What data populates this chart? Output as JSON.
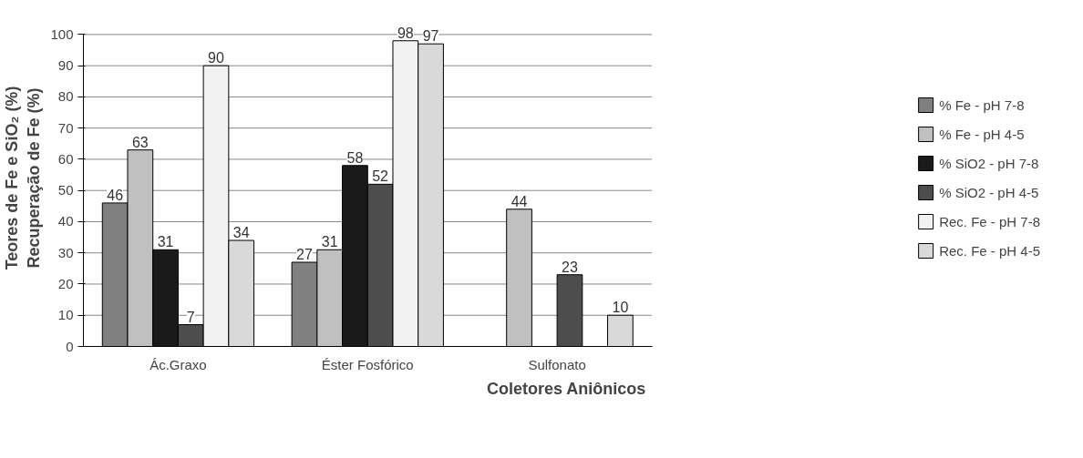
{
  "chart_data": {
    "type": "bar",
    "categories": [
      "Ác.Graxo",
      "Éster Fosfórico",
      "Sulfonato"
    ],
    "xlabel": "Coletores Aniônicos",
    "ylabel": "Teores de Fe e SiO₂ (%)\nRecuperação de Fe (%)",
    "series": [
      {
        "name": "% Fe - pH 7-8",
        "color": "#808080",
        "values": [
          46,
          27,
          null
        ]
      },
      {
        "name": "% Fe - pH 4-5",
        "color": "#c0c0c0",
        "values": [
          63,
          31,
          44
        ]
      },
      {
        "name": "% SiO2 - pH 7-8",
        "color": "#1a1a1a",
        "values": [
          31,
          58,
          null
        ]
      },
      {
        "name": "% SiO2 - pH 4-5",
        "color": "#4d4d4d",
        "values": [
          7,
          52,
          23
        ]
      },
      {
        "name": "Rec. Fe - pH 7-8",
        "color": "#f2f2f2",
        "values": [
          90,
          98,
          null
        ]
      },
      {
        "name": "Rec. Fe - pH 4-5",
        "color": "#d9d9d9",
        "values": [
          34,
          97,
          10
        ]
      }
    ],
    "ylim": [
      0,
      100
    ],
    "yticks": [
      0,
      10,
      20,
      30,
      40,
      50,
      60,
      70,
      80,
      90,
      100
    ],
    "grid": "y",
    "legend": "right",
    "data_labels": true
  }
}
